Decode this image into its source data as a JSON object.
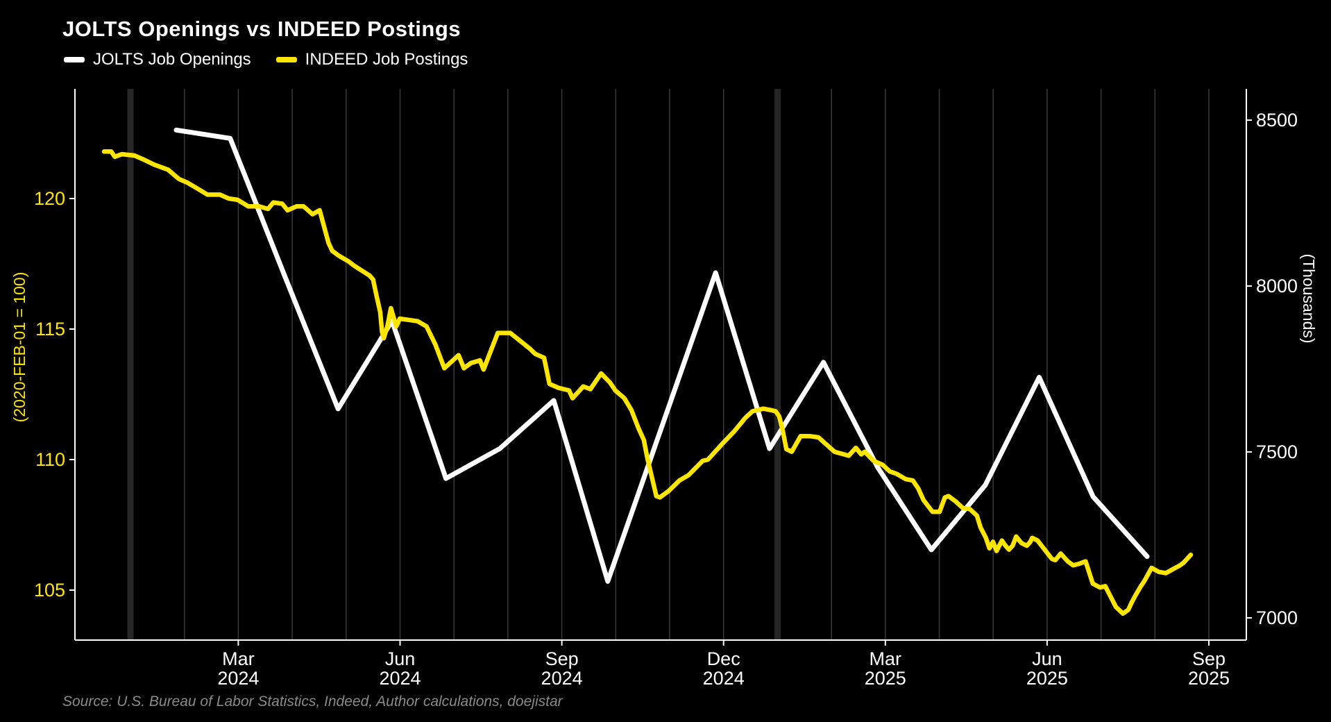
{
  "title": "JOLTS Openings vs INDEED Postings",
  "legend": [
    {
      "label": "JOLTS Job Openings",
      "color": "#ffffff"
    },
    {
      "label": "INDEED Job Postings",
      "color": "#ffe600"
    }
  ],
  "source": "Source: U.S. Bureau of Labor Statistics, Indeed, Author calculations, doejistar",
  "colors": {
    "background": "#000000",
    "jolts_line": "#ffffff",
    "indeed_line": "#ffe600",
    "left_axis_text": "#ffe600",
    "right_axis_text": "#ffffff",
    "grid_thin": "#3b3b3b",
    "grid_year_band": "#262626",
    "axis_line": "#ffffff",
    "source_text": "#8a8a8a"
  },
  "chart_data": {
    "type": "line",
    "title": "JOLTS Openings vs INDEED Postings",
    "grid": "vertical-monthly",
    "legend_position": "top-left",
    "year_band_months": [
      "2024-01",
      "2025-01"
    ],
    "axes": {
      "left": {
        "label": "(2020-FEB-01 = 100)",
        "ticks": [
          120,
          115,
          110,
          105
        ],
        "range_top_to_bottom": [
          124.2,
          103.1
        ],
        "series": "INDEED Job Postings"
      },
      "right": {
        "label": "(Thousands)",
        "ticks": [
          8500,
          8000,
          7500,
          7000
        ],
        "range_top_to_bottom": [
          8594,
          6933
        ],
        "series": "JOLTS Job Openings"
      },
      "x": {
        "range": [
          "2023-12-01",
          "2025-09-20"
        ],
        "tick_labels": [
          {
            "month": "Mar",
            "year": "2024"
          },
          {
            "month": "Jun",
            "year": "2024"
          },
          {
            "month": "Sep",
            "year": "2024"
          },
          {
            "month": "Dec",
            "year": "2024"
          },
          {
            "month": "Mar",
            "year": "2025"
          },
          {
            "month": "Jun",
            "year": "2025"
          },
          {
            "month": "Sep",
            "year": "2025"
          }
        ]
      }
    },
    "series": [
      {
        "name": "JOLTS Job Openings",
        "axis": "right",
        "color": "#ffffff",
        "frequency": "monthly",
        "months": [
          "Jan 2024",
          "Feb 2024",
          "Mar 2024",
          "Apr 2024",
          "May 2024",
          "Jun 2024",
          "Jul 2024",
          "Aug 2024",
          "Sep 2024",
          "Oct 2024",
          "Nov 2024",
          "Dec 2024",
          "Jan 2025",
          "Feb 2025",
          "Mar 2025",
          "Apr 2025",
          "May 2025",
          "Jun 2025",
          "Jul 2025"
        ],
        "values": [
          8470,
          8445,
          8035,
          7630,
          7895,
          7420,
          7510,
          7655,
          7110,
          7575,
          8040,
          7510,
          7770,
          7455,
          7205,
          7400,
          7725,
          7365,
          7185
        ]
      },
      {
        "name": "INDEED Job Postings",
        "axis": "left",
        "color": "#ffe600",
        "frequency": "daily",
        "t0_date": "2023-12-17",
        "points_t_days_value": [
          [
            0,
            121.8
          ],
          [
            4,
            121.8
          ],
          [
            6,
            121.6
          ],
          [
            10,
            121.7
          ],
          [
            17,
            121.65
          ],
          [
            22,
            121.5
          ],
          [
            28,
            121.3
          ],
          [
            36,
            121.1
          ],
          [
            42,
            120.75
          ],
          [
            47,
            120.6
          ],
          [
            52,
            120.4
          ],
          [
            58,
            120.15
          ],
          [
            65,
            120.15
          ],
          [
            70,
            120.0
          ],
          [
            75,
            119.95
          ],
          [
            81,
            119.7
          ],
          [
            87,
            119.7
          ],
          [
            92,
            119.6
          ],
          [
            95,
            119.85
          ],
          [
            100,
            119.8
          ],
          [
            103,
            119.55
          ],
          [
            108,
            119.7
          ],
          [
            112,
            119.7
          ],
          [
            117,
            119.4
          ],
          [
            121,
            119.55
          ],
          [
            126,
            118.3
          ],
          [
            128,
            118.0
          ],
          [
            132,
            117.8
          ],
          [
            137,
            117.6
          ],
          [
            141,
            117.4
          ],
          [
            149,
            117.05
          ],
          [
            151,
            116.9
          ],
          [
            153,
            116.25
          ],
          [
            155,
            115.65
          ],
          [
            156,
            114.9
          ],
          [
            157,
            114.65
          ],
          [
            159,
            115.1
          ],
          [
            161,
            115.8
          ],
          [
            164,
            115.1
          ],
          [
            166,
            115.4
          ],
          [
            171,
            115.35
          ],
          [
            176,
            115.3
          ],
          [
            181,
            115.1
          ],
          [
            186,
            114.4
          ],
          [
            191,
            113.5
          ],
          [
            199,
            114.0
          ],
          [
            202,
            113.5
          ],
          [
            206,
            113.7
          ],
          [
            211,
            113.8
          ],
          [
            213,
            113.45
          ],
          [
            221,
            114.85
          ],
          [
            228,
            114.85
          ],
          [
            239,
            114.25
          ],
          [
            242,
            114.05
          ],
          [
            247,
            113.9
          ],
          [
            250,
            112.9
          ],
          [
            255,
            112.75
          ],
          [
            261,
            112.65
          ],
          [
            263,
            112.35
          ],
          [
            269,
            112.8
          ],
          [
            273,
            112.7
          ],
          [
            279,
            113.3
          ],
          [
            284,
            112.95
          ],
          [
            287,
            112.65
          ],
          [
            292,
            112.35
          ],
          [
            296,
            111.9
          ],
          [
            300,
            111.2
          ],
          [
            303,
            110.75
          ],
          [
            305,
            110.05
          ],
          [
            310,
            108.6
          ],
          [
            312,
            108.55
          ],
          [
            317,
            108.8
          ],
          [
            323,
            109.2
          ],
          [
            328,
            109.4
          ],
          [
            336,
            109.95
          ],
          [
            339,
            110.0
          ],
          [
            347,
            110.6
          ],
          [
            354,
            111.1
          ],
          [
            360,
            111.6
          ],
          [
            364,
            111.85
          ],
          [
            370,
            111.95
          ],
          [
            374,
            111.9
          ],
          [
            377,
            111.85
          ],
          [
            379,
            111.65
          ],
          [
            381,
            111.1
          ],
          [
            383,
            110.4
          ],
          [
            386,
            110.3
          ],
          [
            391,
            110.9
          ],
          [
            396,
            110.9
          ],
          [
            401,
            110.85
          ],
          [
            410,
            110.3
          ],
          [
            418,
            110.15
          ],
          [
            422,
            110.45
          ],
          [
            425,
            110.2
          ],
          [
            427,
            110.3
          ],
          [
            432,
            109.95
          ],
          [
            437,
            109.8
          ],
          [
            441,
            109.55
          ],
          [
            445,
            109.45
          ],
          [
            450,
            109.25
          ],
          [
            454,
            109.2
          ],
          [
            457,
            108.9
          ],
          [
            460,
            108.45
          ],
          [
            465,
            108.0
          ],
          [
            469,
            108.0
          ],
          [
            472,
            108.55
          ],
          [
            474,
            108.6
          ],
          [
            478,
            108.4
          ],
          [
            482,
            108.15
          ],
          [
            486,
            108.1
          ],
          [
            490,
            107.85
          ],
          [
            492,
            107.4
          ],
          [
            495,
            107.0
          ],
          [
            497,
            106.6
          ],
          [
            499,
            106.85
          ],
          [
            501,
            106.5
          ],
          [
            504,
            106.9
          ],
          [
            506,
            106.7
          ],
          [
            508,
            106.55
          ],
          [
            510,
            106.7
          ],
          [
            512,
            107.05
          ],
          [
            515,
            106.8
          ],
          [
            518,
            106.7
          ],
          [
            520,
            106.85
          ],
          [
            521,
            107.0
          ],
          [
            524,
            106.9
          ],
          [
            528,
            106.55
          ],
          [
            532,
            106.2
          ],
          [
            534,
            106.15
          ],
          [
            537,
            106.4
          ],
          [
            541,
            106.1
          ],
          [
            544,
            105.95
          ],
          [
            547,
            106.0
          ],
          [
            551,
            106.1
          ],
          [
            555,
            105.25
          ],
          [
            559,
            105.1
          ],
          [
            562,
            105.15
          ],
          [
            565,
            104.75
          ],
          [
            568,
            104.35
          ],
          [
            572,
            104.1
          ],
          [
            575,
            104.25
          ],
          [
            577,
            104.55
          ],
          [
            579,
            104.8
          ],
          [
            582,
            105.15
          ],
          [
            584,
            105.35
          ],
          [
            586,
            105.6
          ],
          [
            588,
            105.85
          ],
          [
            592,
            105.7
          ],
          [
            596,
            105.65
          ],
          [
            600,
            105.8
          ],
          [
            604,
            105.95
          ],
          [
            606,
            106.05
          ],
          [
            608,
            106.2
          ],
          [
            610,
            106.35
          ]
        ]
      }
    ]
  }
}
